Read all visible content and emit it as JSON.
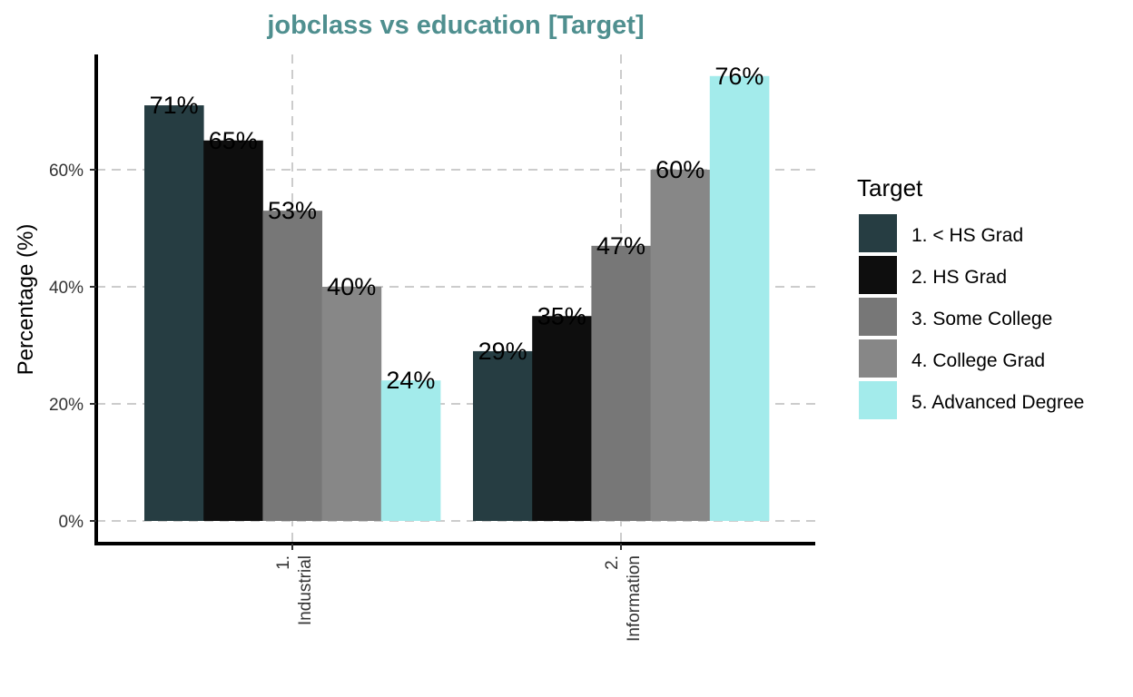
{
  "chart_data": {
    "type": "bar",
    "title": "jobclass vs education [Target]",
    "xlabel": "",
    "ylabel": "Percentage (%)",
    "categories": [
      [
        "1.",
        "Industrial"
      ],
      [
        "2.",
        "Information"
      ]
    ],
    "ylim": [
      0,
      0.8
    ],
    "yticks": [
      0,
      0.2,
      0.4,
      0.6
    ],
    "ytick_labels": [
      "0%",
      "20%",
      "40%",
      "60%"
    ],
    "grid": true,
    "legend": {
      "title": "Target",
      "placement": "right"
    },
    "series": [
      {
        "name": "1. < HS Grad",
        "values": [
          0.71,
          0.29
        ],
        "labels": [
          "71%",
          "29%"
        ],
        "color": "#263D42"
      },
      {
        "name": "2. HS Grad",
        "values": [
          0.65,
          0.35
        ],
        "labels": [
          "65%",
          "35%"
        ],
        "color": "#0E0E0E"
      },
      {
        "name": "3. Some College",
        "values": [
          0.53,
          0.47
        ],
        "labels": [
          "53%",
          "47%"
        ],
        "color": "#777777"
      },
      {
        "name": "4. College Grad",
        "values": [
          0.4,
          0.6
        ],
        "labels": [
          "40%",
          "60%"
        ],
        "color": "#878787"
      },
      {
        "name": "5. Advanced Degree",
        "values": [
          0.24,
          0.76
        ],
        "labels": [
          "24%",
          "76%"
        ],
        "color": "#A3EBEB"
      }
    ]
  },
  "colors": {
    "title": "#4F8F8F",
    "grid": "#CCCCCC",
    "axis": "#000000"
  }
}
